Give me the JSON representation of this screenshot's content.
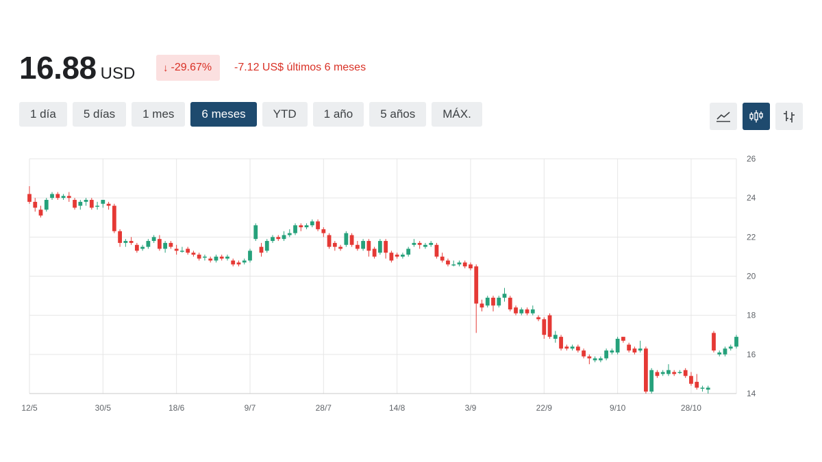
{
  "quote": {
    "price": "16.88",
    "currency": "USD",
    "change_percent": "-29.67%",
    "change_text": "-7.12 US$ últimos 6 meses"
  },
  "ranges": [
    {
      "label": "1 día",
      "active": false
    },
    {
      "label": "5 días",
      "active": false
    },
    {
      "label": "1 mes",
      "active": false
    },
    {
      "label": "6 meses",
      "active": true
    },
    {
      "label": "YTD",
      "active": false
    },
    {
      "label": "1 año",
      "active": false
    },
    {
      "label": "5 años",
      "active": false
    },
    {
      "label": "MÁX.",
      "active": false
    }
  ],
  "chart_types": [
    {
      "name": "line-chart-icon",
      "active": false
    },
    {
      "name": "candlestick-chart-icon",
      "active": true
    },
    {
      "name": "ohlc-chart-icon",
      "active": false
    }
  ],
  "colors": {
    "up": "#26a17b",
    "down": "#e53935",
    "negative_text": "#d93025",
    "badge_bg": "#fbe0e0",
    "active_button": "#1e4a6e"
  },
  "chart_data": {
    "type": "candlestick",
    "ylim": [
      14,
      26
    ],
    "yticks": [
      14,
      16,
      18,
      20,
      22,
      24,
      26
    ],
    "xticks": [
      {
        "label": "12/5",
        "index": 0
      },
      {
        "label": "30/5",
        "index": 13
      },
      {
        "label": "18/6",
        "index": 26
      },
      {
        "label": "9/7",
        "index": 39
      },
      {
        "label": "28/7",
        "index": 52
      },
      {
        "label": "14/8",
        "index": 65
      },
      {
        "label": "3/9",
        "index": 78
      },
      {
        "label": "22/9",
        "index": 91
      },
      {
        "label": "9/10",
        "index": 104
      },
      {
        "label": "28/10",
        "index": 117
      }
    ],
    "grid": true,
    "y_axis_position": "right",
    "candles": [
      [
        24.2,
        23.8,
        24.6,
        23.7
      ],
      [
        23.8,
        23.5,
        24.0,
        23.3
      ],
      [
        23.4,
        23.1,
        23.6,
        23.0
      ],
      [
        23.4,
        23.9,
        24.0,
        23.3
      ],
      [
        24.0,
        24.2,
        24.3,
        23.9
      ],
      [
        24.2,
        24.0,
        24.3,
        23.9
      ],
      [
        24.0,
        24.1,
        24.2,
        23.9
      ],
      [
        24.1,
        24.0,
        24.3,
        23.8
      ],
      [
        23.9,
        23.5,
        24.0,
        23.4
      ],
      [
        23.6,
        23.8,
        23.9,
        23.4
      ],
      [
        23.8,
        23.9,
        24.0,
        23.6
      ],
      [
        23.9,
        23.5,
        24.0,
        23.4
      ],
      [
        23.6,
        23.6,
        23.8,
        23.4
      ],
      [
        23.7,
        23.9,
        23.9,
        23.5
      ],
      [
        23.7,
        23.6,
        23.8,
        23.4
      ],
      [
        23.6,
        22.3,
        23.7,
        22.2
      ],
      [
        22.3,
        21.7,
        22.4,
        21.5
      ],
      [
        21.7,
        21.8,
        21.9,
        21.5
      ],
      [
        21.8,
        21.7,
        22.0,
        21.6
      ],
      [
        21.6,
        21.3,
        21.7,
        21.2
      ],
      [
        21.4,
        21.5,
        21.6,
        21.3
      ],
      [
        21.5,
        21.8,
        21.9,
        21.4
      ],
      [
        21.8,
        22.0,
        22.1,
        21.7
      ],
      [
        21.9,
        21.4,
        22.1,
        21.3
      ],
      [
        21.4,
        21.7,
        21.8,
        21.2
      ],
      [
        21.7,
        21.5,
        21.8,
        21.4
      ],
      [
        21.4,
        21.3,
        21.6,
        21.1
      ],
      [
        21.3,
        21.3,
        21.5,
        21.2
      ],
      [
        21.4,
        21.2,
        21.5,
        21.1
      ],
      [
        21.2,
        21.1,
        21.3,
        21.0
      ],
      [
        21.1,
        20.9,
        21.2,
        20.8
      ],
      [
        21.0,
        21.0,
        21.1,
        20.8
      ],
      [
        20.9,
        20.8,
        21.0,
        20.7
      ],
      [
        20.8,
        21.0,
        21.1,
        20.7
      ],
      [
        21.0,
        20.9,
        21.1,
        20.8
      ],
      [
        20.9,
        21.0,
        21.1,
        20.8
      ],
      [
        20.8,
        20.6,
        20.9,
        20.5
      ],
      [
        20.7,
        20.6,
        20.8,
        20.5
      ],
      [
        20.7,
        20.8,
        20.9,
        20.6
      ],
      [
        20.8,
        21.3,
        21.4,
        20.7
      ],
      [
        21.9,
        22.6,
        22.7,
        21.8
      ],
      [
        21.5,
        21.2,
        21.7,
        21.0
      ],
      [
        21.3,
        21.8,
        21.9,
        21.2
      ],
      [
        21.8,
        22.0,
        22.1,
        21.7
      ],
      [
        22.0,
        21.9,
        22.1,
        21.8
      ],
      [
        21.9,
        22.1,
        22.3,
        21.8
      ],
      [
        22.1,
        22.2,
        22.4,
        22.0
      ],
      [
        22.2,
        22.6,
        22.7,
        22.1
      ],
      [
        22.6,
        22.5,
        22.7,
        22.3
      ],
      [
        22.5,
        22.6,
        22.7,
        22.4
      ],
      [
        22.6,
        22.8,
        22.9,
        22.5
      ],
      [
        22.8,
        22.4,
        22.9,
        22.3
      ],
      [
        22.4,
        22.2,
        22.5,
        22.0
      ],
      [
        22.1,
        21.5,
        22.2,
        21.4
      ],
      [
        21.7,
        21.5,
        21.8,
        21.3
      ],
      [
        21.5,
        21.4,
        21.6,
        21.3
      ],
      [
        21.6,
        22.2,
        22.3,
        21.5
      ],
      [
        22.1,
        21.6,
        22.2,
        21.5
      ],
      [
        21.6,
        21.4,
        21.8,
        21.3
      ],
      [
        21.4,
        21.8,
        21.9,
        21.3
      ],
      [
        21.8,
        21.3,
        21.9,
        21.0
      ],
      [
        21.4,
        21.0,
        21.5,
        20.9
      ],
      [
        21.2,
        21.8,
        21.9,
        21.1
      ],
      [
        21.8,
        21.2,
        21.9,
        20.9
      ],
      [
        21.2,
        20.8,
        21.3,
        20.7
      ],
      [
        21.1,
        21.0,
        21.2,
        20.9
      ],
      [
        21.0,
        21.1,
        21.2,
        20.9
      ],
      [
        21.1,
        21.4,
        21.5,
        21.0
      ],
      [
        21.6,
        21.7,
        21.9,
        21.5
      ],
      [
        21.7,
        21.6,
        21.8,
        21.4
      ],
      [
        21.5,
        21.6,
        21.7,
        21.4
      ],
      [
        21.6,
        21.7,
        21.8,
        21.5
      ],
      [
        21.6,
        21.0,
        21.7,
        20.9
      ],
      [
        21.0,
        20.8,
        21.2,
        20.7
      ],
      [
        20.8,
        20.6,
        20.9,
        20.5
      ],
      [
        20.6,
        20.6,
        20.8,
        20.5
      ],
      [
        20.6,
        20.7,
        20.8,
        20.5
      ],
      [
        20.7,
        20.5,
        20.8,
        20.4
      ],
      [
        20.6,
        20.4,
        20.7,
        20.3
      ],
      [
        20.5,
        18.6,
        20.6,
        17.1
      ],
      [
        18.6,
        18.4,
        18.8,
        18.2
      ],
      [
        18.5,
        18.9,
        19.0,
        18.4
      ],
      [
        18.9,
        18.5,
        19.0,
        18.2
      ],
      [
        18.5,
        18.9,
        19.0,
        18.4
      ],
      [
        18.9,
        19.1,
        19.4,
        18.7
      ],
      [
        18.9,
        18.3,
        19.0,
        18.2
      ],
      [
        18.4,
        18.1,
        18.5,
        18.0
      ],
      [
        18.1,
        18.3,
        18.4,
        18.0
      ],
      [
        18.3,
        18.1,
        18.4,
        18.0
      ],
      [
        18.1,
        18.3,
        18.5,
        18.0
      ],
      [
        17.9,
        17.8,
        18.0,
        17.7
      ],
      [
        17.8,
        17.0,
        17.9,
        16.8
      ],
      [
        18.0,
        16.9,
        18.1,
        16.8
      ],
      [
        16.8,
        17.0,
        17.2,
        16.6
      ],
      [
        16.9,
        16.3,
        17.0,
        16.2
      ],
      [
        16.4,
        16.3,
        16.5,
        16.2
      ],
      [
        16.3,
        16.4,
        16.5,
        16.2
      ],
      [
        16.4,
        16.2,
        16.5,
        16.1
      ],
      [
        16.2,
        15.9,
        16.3,
        15.8
      ],
      [
        15.9,
        15.8,
        16.0,
        15.5
      ],
      [
        15.7,
        15.8,
        15.9,
        15.6
      ],
      [
        15.7,
        15.8,
        15.9,
        15.6
      ],
      [
        15.8,
        16.2,
        16.3,
        15.7
      ],
      [
        16.1,
        16.2,
        16.3,
        16.0
      ],
      [
        16.1,
        16.8,
        16.9,
        16.0
      ],
      [
        16.9,
        16.7,
        16.9,
        16.6
      ],
      [
        16.5,
        16.2,
        16.6,
        16.1
      ],
      [
        16.3,
        16.1,
        16.4,
        16.0
      ],
      [
        16.2,
        16.3,
        16.7,
        16.1
      ],
      [
        16.3,
        14.1,
        16.4,
        14.0
      ],
      [
        14.1,
        15.2,
        15.3,
        14.0
      ],
      [
        15.1,
        14.9,
        15.2,
        14.8
      ],
      [
        15.0,
        15.1,
        15.2,
        14.9
      ],
      [
        15.0,
        15.2,
        15.5,
        14.9
      ],
      [
        15.1,
        15.0,
        15.2,
        14.9
      ],
      [
        15.1,
        15.1,
        15.2,
        15.0
      ],
      [
        15.2,
        14.9,
        15.3,
        14.8
      ],
      [
        14.9,
        14.5,
        15.1,
        14.4
      ],
      [
        14.6,
        14.3,
        15.0,
        14.2
      ],
      [
        14.3,
        14.3,
        14.4,
        14.1
      ],
      [
        14.2,
        14.3,
        14.4,
        14.0
      ],
      [
        17.1,
        16.2,
        17.2,
        16.1
      ],
      [
        16.0,
        16.1,
        16.2,
        15.9
      ],
      [
        16.0,
        16.3,
        16.4,
        15.9
      ],
      [
        16.3,
        16.4,
        16.5,
        16.2
      ],
      [
        16.4,
        16.9,
        17.0,
        16.3
      ]
    ]
  }
}
